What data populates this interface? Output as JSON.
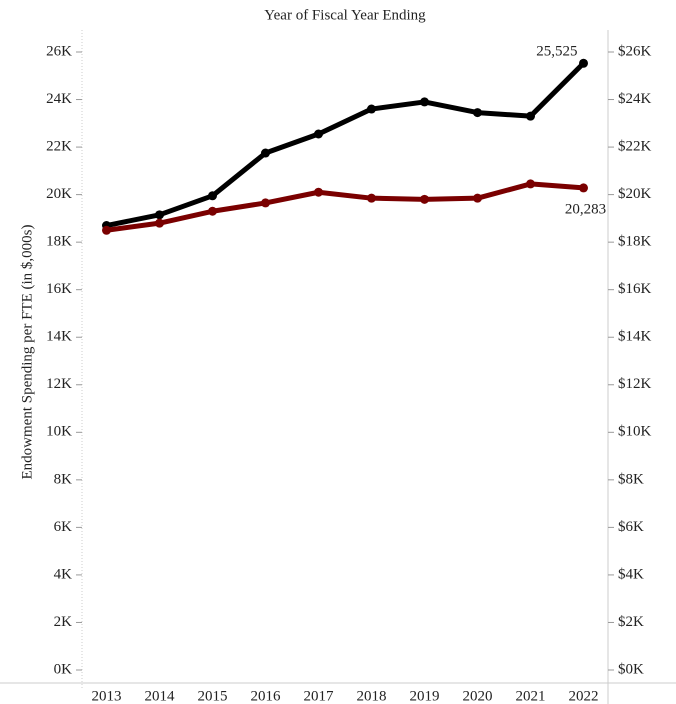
{
  "chart_data": {
    "type": "line",
    "title": "Year of Fiscal Year Ending",
    "ylabel": "Endowment Spending per FTE (in $,000s)",
    "categories": [
      "2013",
      "2014",
      "2015",
      "2016",
      "2017",
      "2018",
      "2019",
      "2020",
      "2021",
      "2022"
    ],
    "series": [
      {
        "color": "#000000",
        "values": [
          18700,
          19150,
          19950,
          21750,
          22550,
          23600,
          23900,
          23450,
          23300,
          25525
        ],
        "value_labels": [
          null,
          null,
          null,
          null,
          null,
          null,
          null,
          null,
          null,
          "25,525"
        ]
      },
      {
        "color": "#7a0000",
        "values": [
          18500,
          18800,
          19300,
          19650,
          20100,
          19850,
          19800,
          19850,
          20450,
          20283
        ],
        "value_labels": [
          null,
          null,
          null,
          null,
          null,
          null,
          null,
          null,
          null,
          "20,283"
        ]
      }
    ],
    "ylim": [
      0,
      26000
    ],
    "yticks": [
      {
        "value": 0,
        "label": "0K"
      },
      {
        "value": 2000,
        "label": "2K"
      },
      {
        "value": 4000,
        "label": "4K"
      },
      {
        "value": 6000,
        "label": "6K"
      },
      {
        "value": 8000,
        "label": "8K"
      },
      {
        "value": 10000,
        "label": "10K"
      },
      {
        "value": 12000,
        "label": "12K"
      },
      {
        "value": 14000,
        "label": "14K"
      },
      {
        "value": 16000,
        "label": "16K"
      },
      {
        "value": 18000,
        "label": "18K"
      },
      {
        "value": 20000,
        "label": "20K"
      },
      {
        "value": 22000,
        "label": "22K"
      },
      {
        "value": 24000,
        "label": "24K"
      },
      {
        "value": 26000,
        "label": "26K"
      }
    ],
    "y2lim": [
      0,
      26000
    ],
    "y2ticks": [
      {
        "value": 0,
        "label": "$0K"
      },
      {
        "value": 2000,
        "label": "$2K"
      },
      {
        "value": 4000,
        "label": "$4K"
      },
      {
        "value": 6000,
        "label": "$6K"
      },
      {
        "value": 8000,
        "label": "$8K"
      },
      {
        "value": 10000,
        "label": "$10K"
      },
      {
        "value": 12000,
        "label": "$12K"
      },
      {
        "value": 14000,
        "label": "$14K"
      },
      {
        "value": 16000,
        "label": "$16K"
      },
      {
        "value": 18000,
        "label": "$18K"
      },
      {
        "value": 20000,
        "label": "$20K"
      },
      {
        "value": 22000,
        "label": "$22K"
      },
      {
        "value": 24000,
        "label": "$24K"
      },
      {
        "value": 26000,
        "label": "$26K"
      }
    ]
  }
}
